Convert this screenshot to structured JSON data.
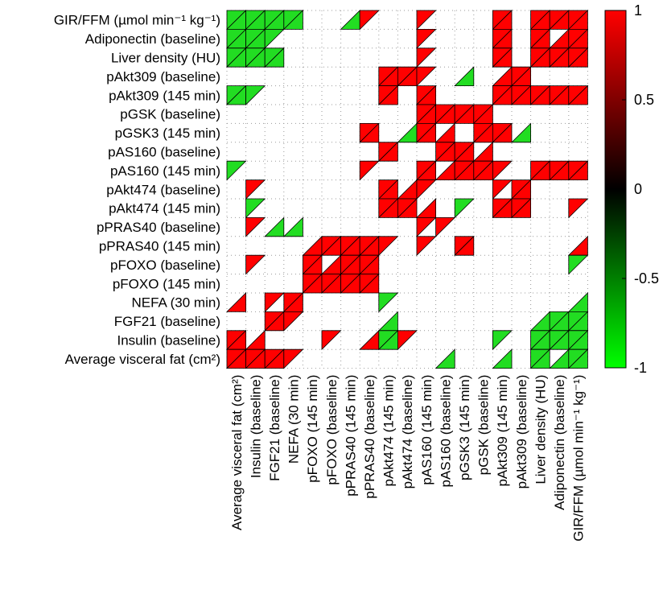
{
  "chart_data": {
    "type": "heatmap",
    "row_labels": [
      "GIR/FFM (µmol min⁻¹ kg⁻¹)",
      "Adiponectin (baseline)",
      "Liver density (HU)",
      "pAkt309 (baseline)",
      "pAkt309 (145 min)",
      "pGSK (baseline)",
      "pGSK3 (145 min)",
      "pAS160 (baseline)",
      "pAS160 (145 min)",
      "pAkt474 (baseline)",
      "pAkt474 (145 min)",
      "pPRAS40 (baseline)",
      "pPRAS40 (145 min)",
      "pFOXO (baseline)",
      "pFOXO (145 min)",
      "NEFA (30 min)",
      "FGF21 (baseline)",
      "Insulin (baseline)",
      "Average visceral fat (cm²)"
    ],
    "col_labels": [
      "Average  visceral fat (cm²)",
      "Insulin (baseline)",
      "FGF21 (baseline)",
      "NEFA (30 min)",
      "pFOXO (145 min)",
      "pFOXO (baseline)",
      "pPRAS40 (145 min)",
      "pPRAS40 (baseline)",
      "pAkt474 (145 min)",
      "pAkt474 (baseline)",
      "pAS160 (145 min)",
      "pAS160 (baseline)",
      "pGSK3 (145 min)",
      "pGSK (baseline)",
      "pAkt309 (145 min)",
      "pAkt309 (baseline)",
      "Liver density (HU)",
      "Adiponectin (baseline)",
      "GIR/FFM  (µmol min⁻¹ kg⁻¹)"
    ],
    "colorbar": {
      "min": -1,
      "max": 1,
      "ticks": [
        "1",
        "0.5",
        "0",
        "-0.5",
        "-1"
      ],
      "tick_values": [
        1,
        0.5,
        0,
        -0.5,
        -1
      ]
    },
    "encoding": "u = upper-left triangle, l = lower-right triangle, b = both; r = red (positive), g = green (negative)",
    "cells": [
      [
        "bg",
        "bg",
        "bg",
        "bg",
        "",
        "",
        "lg",
        "ur",
        "",
        "",
        "ur",
        "",
        "",
        "",
        "br",
        "",
        "br",
        "br",
        "br"
      ],
      [
        "bg",
        "bg",
        "ug",
        "",
        "",
        "",
        "",
        "",
        "",
        "",
        "ur",
        "",
        "",
        "",
        "br",
        "",
        "br",
        "lr",
        "br"
      ],
      [
        "bg",
        "bg",
        "bg",
        "",
        "",
        "",
        "",
        "",
        "",
        "",
        "ur",
        "",
        "",
        "",
        "br",
        "",
        "br",
        "br",
        "br"
      ],
      [
        "",
        "",
        "",
        "",
        "",
        "",
        "",
        "",
        "br",
        "br",
        "ur",
        "",
        "lg",
        "",
        "lr",
        "br",
        "",
        "",
        ""
      ],
      [
        "bg",
        "ug",
        "",
        "",
        "",
        "",
        "",
        "",
        "br",
        "",
        "br",
        "",
        "",
        "",
        "br",
        "br",
        "br",
        "br",
        "br"
      ],
      [
        "",
        "",
        "",
        "",
        "",
        "",
        "",
        "",
        "",
        "",
        "br",
        "br",
        "br",
        "br",
        "",
        "",
        "",
        "",
        ""
      ],
      [
        "",
        "",
        "",
        "",
        "",
        "",
        "",
        "br",
        "",
        "lg",
        "br",
        "lr",
        "",
        "br",
        "br",
        "lg",
        "",
        "",
        ""
      ],
      [
        "",
        "",
        "",
        "",
        "",
        "",
        "",
        "",
        "br",
        "",
        "",
        "br",
        "br",
        "lr",
        "",
        "",
        "",
        "",
        ""
      ],
      [
        "ug",
        "",
        "",
        "",
        "",
        "",
        "",
        "ur",
        "",
        "",
        "br",
        "lr",
        "br",
        "br",
        "ur",
        "",
        "br",
        "br",
        "br"
      ],
      [
        "",
        "ur",
        "",
        "",
        "",
        "",
        "",
        "",
        "br",
        "lr",
        "ur",
        "",
        "",
        "",
        "ur",
        "br",
        "",
        "",
        ""
      ],
      [
        "",
        "ug",
        "",
        "",
        "",
        "",
        "",
        "",
        "br",
        "br",
        "lr",
        "",
        "ug",
        "",
        "br",
        "br",
        "",
        "",
        "ur"
      ],
      [
        "",
        "ur",
        "lg",
        "lg",
        "",
        "",
        "",
        "",
        "",
        "",
        "ur",
        "ur",
        "",
        "",
        "",
        "",
        "",
        "",
        ""
      ],
      [
        "",
        "",
        "",
        "",
        "lr",
        "br",
        "br",
        "br",
        "ur",
        "",
        "ur",
        "",
        "br",
        "",
        "",
        "",
        "",
        "",
        "lr"
      ],
      [
        "",
        "ur",
        "",
        "",
        "br",
        "lr",
        "br",
        "br",
        "",
        "",
        "",
        "",
        "",
        "",
        "",
        "",
        "",
        "",
        "ug"
      ],
      [
        "",
        "",
        "",
        "",
        "br",
        "br",
        "br",
        "br",
        "",
        "",
        "",
        "",
        "",
        "",
        "",
        "",
        "",
        "",
        ""
      ],
      [
        "lr",
        "",
        "ur",
        "br",
        "",
        "",
        "",
        "",
        "ug",
        "",
        "",
        "",
        "",
        "",
        "",
        "",
        "",
        "",
        "lg"
      ],
      [
        "",
        "",
        "br",
        "ur",
        "",
        "",
        "",
        "",
        "lg",
        "",
        "",
        "",
        "",
        "",
        "",
        "",
        "lg",
        "bg",
        "bg"
      ],
      [
        "br",
        "lr",
        "",
        "",
        "",
        "ur",
        "",
        "lr",
        "bg",
        "ur",
        "",
        "",
        "",
        "",
        "ug",
        "",
        "bg",
        "bg",
        "bg"
      ],
      [
        "br",
        "br",
        "br",
        "ur",
        "",
        "",
        "",
        "",
        "",
        "",
        "",
        "lg",
        "",
        "",
        "lg",
        "",
        "bg",
        "lg",
        "bg"
      ]
    ]
  }
}
